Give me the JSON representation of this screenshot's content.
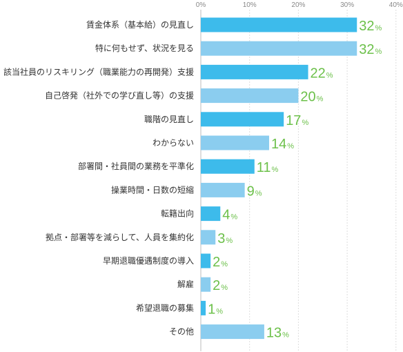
{
  "chart_data": {
    "type": "bar",
    "orientation": "horizontal",
    "categories": [
      "賃金体系（基本給）の見直し",
      "特に何もせず、状況を見る",
      "該当社員のリスキリング（職業能力の再開発）支援",
      "自己啓発（社外での学び直し等）の支援",
      "職階の見直し",
      "わからない",
      "部署間・社員間の業務を平準化",
      "操業時間・日数の短縮",
      "転籍出向",
      "拠点・部署等を減らして、人員を集約化",
      "早期退職優遇制度の導入",
      "解雇",
      "希望退職の募集",
      "その他"
    ],
    "values": [
      32,
      32,
      22,
      20,
      17,
      14,
      11,
      9,
      4,
      3,
      2,
      2,
      1,
      13
    ],
    "value_unit": "%",
    "x_ticks": [
      "0%",
      "10%",
      "20%",
      "30%",
      "40%"
    ],
    "xlim": [
      0,
      40
    ],
    "grid": true,
    "colors": {
      "bar_dark": "#3dbbeb",
      "bar_light": "#8bcdef",
      "value_label": "#6cc04a",
      "grid": "#dddddd",
      "axis": "#bbbbbb"
    }
  }
}
